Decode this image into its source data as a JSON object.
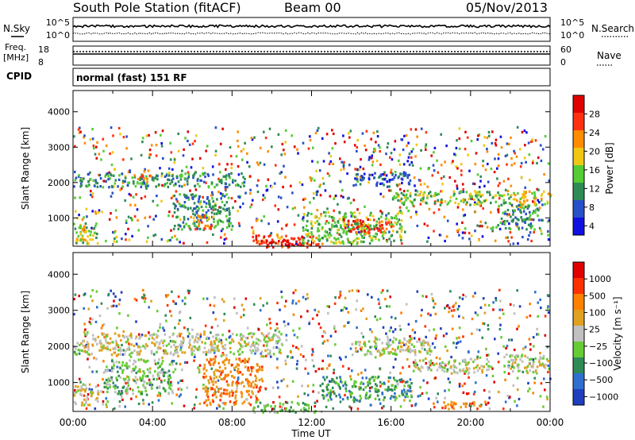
{
  "header": {
    "station": "South Pole Station (fitACF)",
    "beam": "Beam 00",
    "date": "05/Nov/2013"
  },
  "status_panels": {
    "nsky_label": "N.Sky",
    "nsearch_label": "N.Search",
    "nsky_ticks": [
      "10^5",
      "10^0"
    ],
    "nsearch_ticks": [
      "10^5",
      "10^0"
    ],
    "freq_label": [
      "Freq.",
      "[MHz]"
    ],
    "freq_ticks": [
      "18",
      "8"
    ],
    "nave_label": "Nave",
    "nave_ticks": [
      "60",
      "0"
    ],
    "cpid_label": "CPID",
    "cpid_value": "normal (fast) 151 RF"
  },
  "colors": {
    "power": [
      "#1010e0",
      "#2850c8",
      "#2e8b57",
      "#55cc33",
      "#f0c814",
      "#ff8c00",
      "#ff3010",
      "#e00000"
    ],
    "velocity": [
      "#1f3fbf",
      "#2f6fcf",
      "#2e8b57",
      "#66cc33",
      "#c0c0c0",
      "#e0a020",
      "#ff8000",
      "#ff3000",
      "#e00000"
    ]
  },
  "chart_data": [
    {
      "type": "heatmap",
      "name": "power",
      "xlabel": "Time UT",
      "ylabel": "Slant Range [km]",
      "xlim": [
        0,
        24
      ],
      "ylim": [
        200,
        4600
      ],
      "xticks": [
        "00:00",
        "04:00",
        "08:00",
        "12:00",
        "16:00",
        "20:00",
        "00:00"
      ],
      "yticks": [
        1000,
        2000,
        3000,
        4000
      ],
      "colorbar_label": "Power [dB]",
      "colorbar_ticks": [
        "28",
        "24",
        "20",
        "16",
        "12",
        "8",
        "4"
      ],
      "colorbar_range": [
        0,
        30
      ],
      "regions": [
        {
          "t0": 0.0,
          "t1": 1.2,
          "r0": 300,
          "r1": 900,
          "level": 3
        },
        {
          "t0": 0.3,
          "t1": 0.8,
          "r0": 400,
          "r1": 800,
          "level": 5
        },
        {
          "t0": 0.1,
          "t1": 8.7,
          "r0": 1900,
          "r1": 2300,
          "level": 2
        },
        {
          "t0": 3.0,
          "t1": 4.0,
          "r0": 2050,
          "r1": 2250,
          "level": 5
        },
        {
          "t0": 5.0,
          "t1": 8.0,
          "r0": 700,
          "r1": 1700,
          "level": 2
        },
        {
          "t0": 6.0,
          "t1": 7.0,
          "r0": 700,
          "r1": 1100,
          "level": 5
        },
        {
          "t0": 9.0,
          "t1": 12.5,
          "r0": 200,
          "r1": 550,
          "level": 6
        },
        {
          "t0": 9.5,
          "t1": 11.5,
          "r0": 250,
          "r1": 400,
          "level": 7
        },
        {
          "t0": 11.5,
          "t1": 16.5,
          "r0": 300,
          "r1": 1200,
          "level": 3
        },
        {
          "t0": 13.5,
          "t1": 16.0,
          "r0": 600,
          "r1": 1000,
          "level": 6
        },
        {
          "t0": 14.0,
          "t1": 17.0,
          "r0": 1900,
          "r1": 2300,
          "level": 1
        },
        {
          "t0": 16.0,
          "t1": 22.0,
          "r0": 1400,
          "r1": 1800,
          "level": 3
        },
        {
          "t0": 22.0,
          "t1": 24.0,
          "r0": 1300,
          "r1": 1800,
          "level": 4
        },
        {
          "t0": 21.5,
          "t1": 23.5,
          "r0": 700,
          "r1": 1400,
          "level": 2
        }
      ]
    },
    {
      "type": "heatmap",
      "name": "velocity",
      "xlabel": "Time UT",
      "ylabel": "Slant Range [km]",
      "xlim": [
        0,
        24
      ],
      "ylim": [
        200,
        4600
      ],
      "xticks": [
        "00:00",
        "04:00",
        "08:00",
        "12:00",
        "16:00",
        "20:00",
        "00:00"
      ],
      "yticks": [
        1000,
        2000,
        3000,
        4000
      ],
      "colorbar_label": "Velocity [m s⁻¹]",
      "colorbar_ticks": [
        "1000",
        "500",
        "100",
        "25",
        "−25",
        "−100",
        "−500",
        "−1000"
      ],
      "colorbar_range": [
        -1200,
        1200
      ],
      "regions": [
        {
          "t0": 0.0,
          "t1": 10.5,
          "r0": 1800,
          "r1": 2400,
          "level": 4
        },
        {
          "t0": 0.0,
          "t1": 1.5,
          "r0": 400,
          "r1": 1000,
          "level": 4
        },
        {
          "t0": 1.5,
          "t1": 5.0,
          "r0": 700,
          "r1": 1700,
          "level": 3
        },
        {
          "t0": 6.5,
          "t1": 9.5,
          "r0": 400,
          "r1": 1700,
          "level": 6
        },
        {
          "t0": 9.0,
          "t1": 12.5,
          "r0": 200,
          "r1": 500,
          "level": 3
        },
        {
          "t0": 12.5,
          "t1": 17.0,
          "r0": 500,
          "r1": 1200,
          "level": 2
        },
        {
          "t0": 14.0,
          "t1": 18.0,
          "r0": 1800,
          "r1": 2300,
          "level": 4
        },
        {
          "t0": 17.0,
          "t1": 21.0,
          "r0": 1300,
          "r1": 1700,
          "level": 4
        },
        {
          "t0": 21.5,
          "t1": 24.0,
          "r0": 1300,
          "r1": 1800,
          "level": 4
        },
        {
          "t0": 18.0,
          "t1": 21.0,
          "r0": 300,
          "r1": 500,
          "level": 6
        }
      ]
    }
  ]
}
